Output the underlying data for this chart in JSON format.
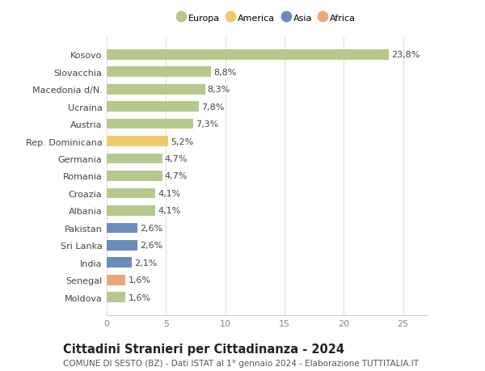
{
  "categories": [
    "Moldova",
    "Senegal",
    "India",
    "Sri Lanka",
    "Pakistan",
    "Albania",
    "Croazia",
    "Romania",
    "Germania",
    "Rep. Dominicana",
    "Austria",
    "Ucraina",
    "Macedonia d/N.",
    "Slovacchia",
    "Kosovo"
  ],
  "values": [
    1.6,
    1.6,
    2.1,
    2.6,
    2.6,
    4.1,
    4.1,
    4.7,
    4.7,
    5.2,
    7.3,
    7.8,
    8.3,
    8.8,
    23.8
  ],
  "labels": [
    "1,6%",
    "1,6%",
    "2,1%",
    "2,6%",
    "2,6%",
    "4,1%",
    "4,1%",
    "4,7%",
    "4,7%",
    "5,2%",
    "7,3%",
    "7,8%",
    "8,3%",
    "8,8%",
    "23,8%"
  ],
  "colors": [
    "#b5c98e",
    "#e8a87c",
    "#6b8cba",
    "#6b8cba",
    "#6b8cba",
    "#b5c98e",
    "#b5c98e",
    "#b5c98e",
    "#b5c98e",
    "#f0c96e",
    "#b5c98e",
    "#b5c98e",
    "#b5c98e",
    "#b5c98e",
    "#b5c98e"
  ],
  "legend": [
    {
      "label": "Europa",
      "color": "#b5c98e"
    },
    {
      "label": "America",
      "color": "#f0c96e"
    },
    {
      "label": "Asia",
      "color": "#6b8cba"
    },
    {
      "label": "Africa",
      "color": "#e8a87c"
    }
  ],
  "title": "Cittadini Stranieri per Cittadinanza - 2024",
  "subtitle": "COMUNE DI SESTO (BZ) - Dati ISTAT al 1° gennaio 2024 - Elaborazione TUTTITALIA.IT",
  "xlim": [
    0,
    27
  ],
  "xticks": [
    0,
    5,
    10,
    15,
    20,
    25
  ],
  "bar_height": 0.6,
  "background_color": "#ffffff",
  "grid_color": "#e0e0e0",
  "label_fontsize": 8.0,
  "tick_fontsize": 8.0,
  "title_fontsize": 10.5,
  "subtitle_fontsize": 7.5
}
